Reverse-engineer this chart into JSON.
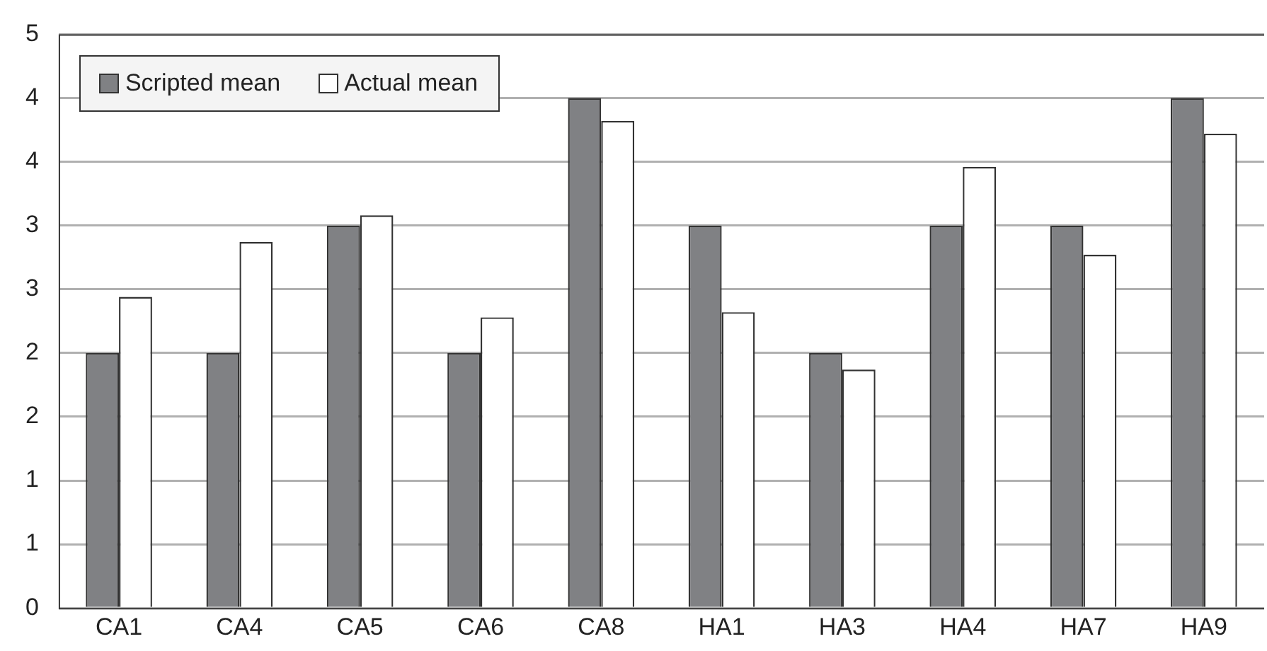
{
  "chart_data": {
    "type": "bar",
    "categories": [
      "CA1",
      "CA4",
      "CA5",
      "CA6",
      "CA8",
      "HA1",
      "HA3",
      "HA4",
      "HA7",
      "HA9"
    ],
    "series": [
      {
        "name": "Scripted mean",
        "color": "#808184",
        "values": [
          2,
          2,
          3,
          2,
          4,
          3,
          2,
          3,
          3,
          4
        ]
      },
      {
        "name": "Actual mean",
        "color": "#ffffff",
        "values": [
          2.44,
          2.87,
          3.08,
          2.28,
          3.82,
          2.32,
          1.87,
          3.46,
          2.77,
          3.72
        ]
      }
    ],
    "ylim": [
      0,
      4.5
    ],
    "yticks": [
      0,
      {
        "value": 0.5,
        "label": "1"
      },
      1,
      {
        "value": 1.5,
        "label": "2"
      },
      2,
      {
        "value": 2.5,
        "label": "3"
      },
      3,
      {
        "value": 3.5,
        "label": "4"
      },
      4,
      {
        "value": 4.5,
        "label": "5"
      }
    ],
    "grid": "y",
    "legend": "top left"
  }
}
